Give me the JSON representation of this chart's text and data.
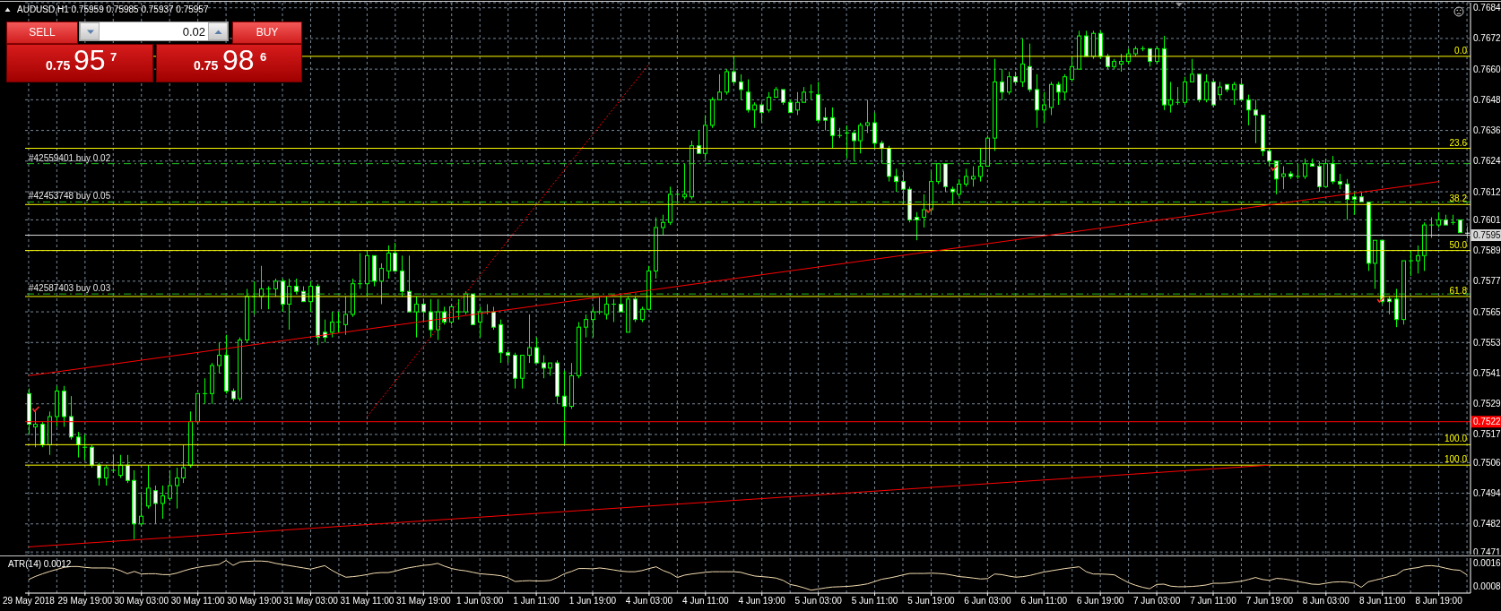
{
  "chart_data": [
    {
      "type": "candlestick",
      "title": "AUDUSD,H1 0.75959 0.75985 0.75937 0.75957",
      "annotations": [
        "SELL",
        "0.02",
        "BUY",
        "0.75",
        "95",
        "7",
        "0.75",
        "98",
        "6",
        {
          "text": "0.0",
          "y": 0.7665
        },
        {
          "text": "23.6",
          "y": 0.7629
        },
        {
          "text": "38.2",
          "y": 0.7607
        },
        {
          "text": "50.0",
          "y": 0.7589
        },
        {
          "text": "61.8",
          "y": 0.7571
        },
        {
          "text": "100.0",
          "y": 0.7513
        },
        {
          "text": "100.0",
          "y": 0.7505
        }
      ],
      "categories": [
        "29 May 2018",
        null,
        null,
        null,
        null,
        null,
        null,
        null,
        "29 May 19:00",
        null,
        null,
        null,
        null,
        null,
        null,
        null,
        "30 May 03:00",
        null,
        null,
        null,
        null,
        null,
        null,
        null,
        "30 May 11:00",
        null,
        null,
        null,
        null,
        null,
        null,
        null,
        "30 May 19:00",
        null,
        null,
        null,
        null,
        null,
        null,
        null,
        "31 May 03:00",
        null,
        null,
        null,
        null,
        null,
        null,
        null,
        "31 May 11:00",
        null,
        null,
        null,
        null,
        null,
        null,
        null,
        "31 May 19:00",
        null,
        null,
        null,
        null,
        null,
        null,
        null,
        "1 Jun 03:00",
        null,
        null,
        null,
        null,
        null,
        null,
        null,
        "1 Jun 11:00",
        null,
        null,
        null,
        null,
        null,
        null,
        null,
        "1 Jun 19:00",
        null,
        null,
        null,
        null,
        null,
        null,
        null,
        "4 Jun 03:00",
        null,
        null,
        null,
        null,
        null,
        null,
        null,
        "4 Jun 11:00",
        null,
        null,
        null,
        null,
        null,
        null,
        null,
        "4 Jun 19:00",
        null,
        null,
        null,
        null,
        null,
        null,
        null,
        "5 Jun 03:00",
        null,
        null,
        null,
        null,
        null,
        null,
        null,
        "5 Jun 11:00",
        null,
        null,
        null,
        null,
        null,
        null,
        null,
        "5 Jun 19:00",
        null,
        null,
        null,
        null,
        null,
        null,
        null,
        "6 Jun 03:00",
        null,
        null,
        null,
        null,
        null,
        null,
        null,
        "6 Jun 11:00",
        null,
        null,
        null,
        null,
        null,
        null,
        null,
        "6 Jun 19:00",
        null,
        null,
        null,
        null,
        null,
        null,
        null,
        "7 Jun 03:00",
        null,
        null,
        null,
        null,
        null,
        null,
        null,
        "7 Jun 11:00",
        null,
        null,
        null,
        null,
        null,
        null,
        null,
        "7 Jun 19:00",
        null,
        null,
        null,
        null,
        null,
        null,
        null,
        "8 Jun 03:00",
        null,
        null,
        null,
        null,
        null,
        null,
        null,
        "8 Jun 11:00",
        null,
        null,
        null,
        null,
        null,
        null,
        null,
        "8 Jun 19:00",
        null,
        null,
        null,
        null
      ],
      "ohlc": [
        [
          0.7533,
          0.7535,
          0.7517,
          0.7521
        ],
        [
          0.752,
          0.7526,
          0.7512,
          0.7521
        ],
        [
          0.7521,
          0.7522,
          0.7512,
          0.7513
        ],
        [
          0.7513,
          0.7526,
          0.7509,
          0.7524
        ],
        [
          0.7524,
          0.7536,
          0.752,
          0.7534
        ],
        [
          0.7534,
          0.7536,
          0.752,
          0.7524
        ],
        [
          0.7524,
          0.7532,
          0.7515,
          0.7516
        ],
        [
          0.7516,
          0.7518,
          0.7508,
          0.7513
        ],
        [
          0.7512,
          0.7517,
          0.7507,
          0.7512
        ],
        [
          0.7512,
          0.7513,
          0.7504,
          0.7505
        ],
        [
          0.7505,
          0.7506,
          0.7497,
          0.75
        ],
        [
          0.75,
          0.7505,
          0.7497,
          0.7504
        ],
        [
          0.7503,
          0.7509,
          0.7502,
          0.7503
        ],
        [
          0.7501,
          0.7509,
          0.75,
          0.7505
        ],
        [
          0.7505,
          0.7509,
          0.7498,
          0.7499
        ],
        [
          0.7499,
          0.7503,
          0.7476,
          0.7482
        ],
        [
          0.7482,
          0.7494,
          0.7481,
          0.7485
        ],
        [
          0.7489,
          0.7505,
          0.7488,
          0.7496
        ],
        [
          0.7495,
          0.7497,
          0.7482,
          0.749
        ],
        [
          0.749,
          0.7497,
          0.7484,
          0.7493
        ],
        [
          0.7492,
          0.7503,
          0.7491,
          0.7497
        ],
        [
          0.7497,
          0.7504,
          0.7488,
          0.75
        ],
        [
          0.75,
          0.7513,
          0.7498,
          0.7504
        ],
        [
          0.7505,
          0.7526,
          0.7504,
          0.7522
        ],
        [
          0.7522,
          0.7533,
          0.7521,
          0.7533
        ],
        [
          0.7533,
          0.7539,
          0.7529,
          0.7533
        ],
        [
          0.7533,
          0.7545,
          0.7529,
          0.7544
        ],
        [
          0.7544,
          0.7553,
          0.7541,
          0.7548
        ],
        [
          0.7548,
          0.7556,
          0.7533,
          0.7534
        ],
        [
          0.7534,
          0.7535,
          0.753,
          0.7531
        ],
        [
          0.7531,
          0.7555,
          0.753,
          0.7554
        ],
        [
          0.7554,
          0.7574,
          0.7553,
          0.7571
        ],
        [
          0.7571,
          0.7577,
          0.7564,
          0.7571
        ],
        [
          0.7571,
          0.7583,
          0.7566,
          0.7574
        ],
        [
          0.7574,
          0.7575,
          0.7566,
          0.7574
        ],
        [
          0.7574,
          0.7578,
          0.7571,
          0.7577
        ],
        [
          0.7577,
          0.7578,
          0.7565,
          0.7568
        ],
        [
          0.7568,
          0.7578,
          0.7558,
          0.7575
        ],
        [
          0.7575,
          0.7578,
          0.7572,
          0.7573
        ],
        [
          0.7573,
          0.7575,
          0.7569,
          0.7569
        ],
        [
          0.7569,
          0.7577,
          0.7565,
          0.7575
        ],
        [
          0.7575,
          0.7576,
          0.7552,
          0.7555
        ],
        [
          0.7557,
          0.7562,
          0.7553,
          0.7555
        ],
        [
          0.7557,
          0.7565,
          0.7555,
          0.7561
        ],
        [
          0.7561,
          0.7565,
          0.7557,
          0.7561
        ],
        [
          0.756,
          0.7571,
          0.7556,
          0.7564
        ],
        [
          0.7564,
          0.7578,
          0.7563,
          0.7576
        ],
        [
          0.7576,
          0.7588,
          0.7574,
          0.7576
        ],
        [
          0.7576,
          0.7589,
          0.7571,
          0.7587
        ],
        [
          0.7587,
          0.7587,
          0.7575,
          0.7577
        ],
        [
          0.7577,
          0.7584,
          0.7568,
          0.7582
        ],
        [
          0.7581,
          0.7591,
          0.7578,
          0.7588
        ],
        [
          0.7588,
          0.7592,
          0.7581,
          0.7581
        ],
        [
          0.7581,
          0.7587,
          0.7571,
          0.7573
        ],
        [
          0.7573,
          0.7587,
          0.7565,
          0.7565
        ],
        [
          0.7565,
          0.7571,
          0.7555,
          0.7568
        ],
        [
          0.7568,
          0.757,
          0.7561,
          0.7565
        ],
        [
          0.7565,
          0.757,
          0.7555,
          0.7558
        ],
        [
          0.7558,
          0.757,
          0.7554,
          0.7565
        ],
        [
          0.7565,
          0.7567,
          0.756,
          0.7561
        ],
        [
          0.7561,
          0.7568,
          0.756,
          0.7567
        ],
        [
          0.7565,
          0.757,
          0.7562,
          0.7565
        ],
        [
          0.7565,
          0.7573,
          0.7564,
          0.7572
        ],
        [
          0.7572,
          0.7572,
          0.756,
          0.756
        ],
        [
          0.7561,
          0.7567,
          0.7555,
          0.7565
        ],
        [
          0.7565,
          0.7568,
          0.7564,
          0.7565
        ],
        [
          0.7565,
          0.7567,
          0.7558,
          0.7559
        ],
        [
          0.756,
          0.7562,
          0.7545,
          0.7549
        ],
        [
          0.7549,
          0.755,
          0.7545,
          0.7548
        ],
        [
          0.7548,
          0.7549,
          0.7535,
          0.7539
        ],
        [
          0.7539,
          0.7548,
          0.7535,
          0.7548
        ],
        [
          0.7548,
          0.7564,
          0.7545,
          0.7551
        ],
        [
          0.7551,
          0.7555,
          0.7545,
          0.7545
        ],
        [
          0.7545,
          0.7548,
          0.7539,
          0.7543
        ],
        [
          0.7543,
          0.7545,
          0.754,
          0.7545
        ],
        [
          0.7545,
          0.7546,
          0.7529,
          0.7532
        ],
        [
          0.7532,
          0.7542,
          0.7513,
          0.7528
        ],
        [
          0.7528,
          0.7545,
          0.7527,
          0.754
        ],
        [
          0.754,
          0.7561,
          0.7539,
          0.7559
        ],
        [
          0.7559,
          0.7564,
          0.7555,
          0.7562
        ],
        [
          0.7562,
          0.7567,
          0.7555,
          0.7565
        ],
        [
          0.7565,
          0.7571,
          0.7564,
          0.7565
        ],
        [
          0.7564,
          0.7571,
          0.7562,
          0.7568
        ],
        [
          0.7568,
          0.757,
          0.7561,
          0.7568
        ],
        [
          0.7568,
          0.7571,
          0.7565,
          0.7565
        ],
        [
          0.7557,
          0.7571,
          0.7557,
          0.757
        ],
        [
          0.757,
          0.7571,
          0.7561,
          0.7562
        ],
        [
          0.7562,
          0.7567,
          0.7561,
          0.7566
        ],
        [
          0.7566,
          0.7583,
          0.7566,
          0.7581
        ],
        [
          0.7581,
          0.7602,
          0.7578,
          0.7598
        ],
        [
          0.7598,
          0.7603,
          0.7595,
          0.76
        ],
        [
          0.76,
          0.7614,
          0.7599,
          0.7611
        ],
        [
          0.7611,
          0.7613,
          0.7608,
          0.7611
        ],
        [
          0.761,
          0.7623,
          0.7609,
          0.7611
        ],
        [
          0.761,
          0.7632,
          0.7609,
          0.763
        ],
        [
          0.763,
          0.7636,
          0.7627,
          0.7627
        ],
        [
          0.7627,
          0.7642,
          0.7625,
          0.7638
        ],
        [
          0.7638,
          0.7649,
          0.7637,
          0.7648
        ],
        [
          0.7648,
          0.7658,
          0.7648,
          0.7651
        ],
        [
          0.7651,
          0.766,
          0.765,
          0.7659
        ],
        [
          0.7659,
          0.7665,
          0.7654,
          0.7655
        ],
        [
          0.7655,
          0.7658,
          0.7648,
          0.7652
        ],
        [
          0.7651,
          0.7656,
          0.7643,
          0.7644
        ],
        [
          0.7644,
          0.7647,
          0.7637,
          0.7646
        ],
        [
          0.7646,
          0.7647,
          0.7639,
          0.7643
        ],
        [
          0.7644,
          0.7651,
          0.7643,
          0.7649
        ],
        [
          0.7649,
          0.7653,
          0.7649,
          0.7652
        ],
        [
          0.7652,
          0.7652,
          0.7646,
          0.7647
        ],
        [
          0.7647,
          0.7648,
          0.7643,
          0.7643
        ],
        [
          0.7644,
          0.7651,
          0.7642,
          0.7647
        ],
        [
          0.7647,
          0.7653,
          0.7647,
          0.7651
        ],
        [
          0.7651,
          0.7654,
          0.7648,
          0.7651
        ],
        [
          0.765,
          0.7655,
          0.7639,
          0.764
        ],
        [
          0.7641,
          0.7645,
          0.7636,
          0.764
        ],
        [
          0.7641,
          0.7645,
          0.7629,
          0.7634
        ],
        [
          0.7634,
          0.7637,
          0.7633,
          0.7634
        ],
        [
          0.7635,
          0.7638,
          0.7625,
          0.7635
        ],
        [
          0.7635,
          0.7636,
          0.7624,
          0.7632
        ],
        [
          0.7632,
          0.7639,
          0.7627,
          0.7638
        ],
        [
          0.7638,
          0.7648,
          0.7635,
          0.7639
        ],
        [
          0.7639,
          0.7643,
          0.7629,
          0.7631
        ],
        [
          0.7631,
          0.7632,
          0.7623,
          0.7629
        ],
        [
          0.7629,
          0.763,
          0.7616,
          0.7618
        ],
        [
          0.7618,
          0.7621,
          0.7612,
          0.7616
        ],
        [
          0.7616,
          0.762,
          0.7607,
          0.7613
        ],
        [
          0.7613,
          0.7614,
          0.76,
          0.7601
        ],
        [
          0.7602,
          0.7604,
          0.7593,
          0.7601
        ],
        [
          0.7602,
          0.7611,
          0.7598,
          0.7605
        ],
        [
          0.7605,
          0.762,
          0.7604,
          0.7616
        ],
        [
          0.7616,
          0.7623,
          0.7615,
          0.7623
        ],
        [
          0.7623,
          0.7623,
          0.7612,
          0.7614
        ],
        [
          0.7613,
          0.7614,
          0.7607,
          0.7612
        ],
        [
          0.7611,
          0.7617,
          0.761,
          0.7615
        ],
        [
          0.7615,
          0.7621,
          0.7614,
          0.7618
        ],
        [
          0.7617,
          0.7622,
          0.7614,
          0.7618
        ],
        [
          0.7618,
          0.7629,
          0.7616,
          0.7622
        ],
        [
          0.7622,
          0.7634,
          0.7622,
          0.7633
        ],
        [
          0.7633,
          0.7664,
          0.7628,
          0.7655
        ],
        [
          0.7655,
          0.766,
          0.7648,
          0.7651
        ],
        [
          0.7651,
          0.7659,
          0.765,
          0.7657
        ],
        [
          0.7657,
          0.7659,
          0.7654,
          0.7655
        ],
        [
          0.7655,
          0.7672,
          0.7653,
          0.7662
        ],
        [
          0.7661,
          0.767,
          0.7651,
          0.7652
        ],
        [
          0.7652,
          0.7658,
          0.7637,
          0.7644
        ],
        [
          0.7644,
          0.7651,
          0.7639,
          0.7646
        ],
        [
          0.7645,
          0.7655,
          0.7642,
          0.7654
        ],
        [
          0.7654,
          0.7655,
          0.7646,
          0.7651
        ],
        [
          0.7651,
          0.7658,
          0.7648,
          0.7657
        ],
        [
          0.7656,
          0.7665,
          0.7655,
          0.7661
        ],
        [
          0.766,
          0.7675,
          0.766,
          0.7673
        ],
        [
          0.7673,
          0.7675,
          0.7665,
          0.7665
        ],
        [
          0.7665,
          0.7675,
          0.7664,
          0.7674
        ],
        [
          0.7674,
          0.7675,
          0.7664,
          0.7665
        ],
        [
          0.7665,
          0.7666,
          0.766,
          0.7661
        ],
        [
          0.7661,
          0.7664,
          0.766,
          0.7663
        ],
        [
          0.7662,
          0.7666,
          0.7659,
          0.7663
        ],
        [
          0.7663,
          0.7668,
          0.7662,
          0.7666
        ],
        [
          0.7666,
          0.7669,
          0.7665,
          0.7668
        ],
        [
          0.7668,
          0.7669,
          0.7667,
          0.7668
        ],
        [
          0.7668,
          0.7668,
          0.7661,
          0.7663
        ],
        [
          0.7663,
          0.7669,
          0.7662,
          0.7668
        ],
        [
          0.7668,
          0.7673,
          0.7644,
          0.7646
        ],
        [
          0.7646,
          0.7655,
          0.7643,
          0.7648
        ],
        [
          0.7647,
          0.7653,
          0.7646,
          0.7647
        ],
        [
          0.7647,
          0.7657,
          0.7646,
          0.7655
        ],
        [
          0.7655,
          0.7664,
          0.7655,
          0.7658
        ],
        [
          0.7658,
          0.7658,
          0.7647,
          0.7648
        ],
        [
          0.7648,
          0.7658,
          0.7647,
          0.7655
        ],
        [
          0.7655,
          0.7656,
          0.7645,
          0.7646
        ],
        [
          0.765,
          0.7655,
          0.7648,
          0.7653
        ],
        [
          0.7654,
          0.7654,
          0.7651,
          0.7652
        ],
        [
          0.7652,
          0.7655,
          0.7646,
          0.7654
        ],
        [
          0.7654,
          0.7656,
          0.7648,
          0.7648
        ],
        [
          0.7648,
          0.765,
          0.7638,
          0.7644
        ],
        [
          0.7644,
          0.7648,
          0.7631,
          0.7642
        ],
        [
          0.7642,
          0.7642,
          0.7626,
          0.7628
        ],
        [
          0.7628,
          0.7629,
          0.7622,
          0.7624
        ],
        [
          0.7624,
          0.7624,
          0.7611,
          0.7617
        ],
        [
          0.7618,
          0.7622,
          0.7613,
          0.7619
        ],
        [
          0.7619,
          0.762,
          0.7617,
          0.7618
        ],
        [
          0.7618,
          0.7623,
          0.7617,
          0.7618
        ],
        [
          0.7618,
          0.7625,
          0.7617,
          0.7623
        ],
        [
          0.7623,
          0.7625,
          0.7622,
          0.7622
        ],
        [
          0.7622,
          0.7624,
          0.7612,
          0.7614
        ],
        [
          0.7614,
          0.7625,
          0.7614,
          0.7623
        ],
        [
          0.7623,
          0.7626,
          0.7615,
          0.7616
        ],
        [
          0.7616,
          0.7619,
          0.7613,
          0.7615
        ],
        [
          0.7615,
          0.7617,
          0.7601,
          0.7609
        ],
        [
          0.761,
          0.7612,
          0.7603,
          0.7609
        ],
        [
          0.761,
          0.7612,
          0.7608,
          0.7608
        ],
        [
          0.7608,
          0.7608,
          0.7581,
          0.7584
        ],
        [
          0.7584,
          0.7593,
          0.7574,
          0.7593
        ],
        [
          0.7593,
          0.7593,
          0.7568,
          0.7569
        ],
        [
          0.757,
          0.7571,
          0.7564,
          0.7569
        ],
        [
          0.757,
          0.7574,
          0.7559,
          0.7562
        ],
        [
          0.7562,
          0.7585,
          0.756,
          0.7585
        ],
        [
          0.7585,
          0.7589,
          0.7579,
          0.7585
        ],
        [
          0.7585,
          0.7591,
          0.758,
          0.7587
        ],
        [
          0.7587,
          0.76,
          0.7581,
          0.7599
        ],
        [
          0.7599,
          0.7602,
          0.7594,
          0.7599
        ],
        [
          0.7599,
          0.7604,
          0.7598,
          0.7601
        ],
        [
          0.7601,
          0.7603,
          0.7599,
          0.7599
        ],
        [
          0.76,
          0.7603,
          0.7599,
          0.76
        ],
        [
          0.7601,
          0.7601,
          0.7596,
          0.7596
        ],
        [
          0.75959,
          0.75985,
          0.75937,
          0.75957
        ]
      ],
      "color": "#00ff00",
      "colors": [
        "#ffffff",
        "#000000",
        "#ffffff",
        "#000000",
        "#000000",
        "#ffffff",
        "#ffffff",
        "#ffffff",
        "#00ff00",
        "#ffffff",
        "#ffffff",
        "#000000",
        "#00ff00",
        "#000000",
        "#ffffff",
        "#ffffff",
        "#000000",
        "#000000",
        "#ffffff",
        "#000000",
        "#000000",
        "#000000",
        "#000000",
        "#000000",
        "#000000",
        "#00ff00",
        "#000000",
        "#000000",
        "#ffffff",
        "#ffffff",
        "#000000",
        "#000000",
        "#00ff00",
        "#000000",
        "#00ff00",
        "#000000",
        "#ffffff",
        "#000000",
        "#ffffff",
        "#ffffff",
        "#000000",
        "#ffffff",
        "#ffffff",
        "#000000",
        "#00ff00",
        "#000000",
        "#000000",
        "#00ff00",
        "#000000",
        "#ffffff",
        "#000000",
        "#000000",
        "#ffffff",
        "#ffffff",
        "#ffffff",
        "#000000",
        "#ffffff",
        "#ffffff",
        "#000000",
        "#ffffff",
        "#000000",
        "#00ff00",
        "#000000",
        "#ffffff",
        "#000000",
        "#00ff00",
        "#ffffff",
        "#ffffff",
        "#ffffff",
        "#ffffff",
        "#000000",
        "#000000",
        "#ffffff",
        "#ffffff",
        "#000000",
        "#ffffff",
        "#ffffff",
        "#000000",
        "#000000",
        "#000000",
        "#000000",
        "#00ff00",
        "#000000",
        "#00ff00",
        "#ffffff",
        "#000000",
        "#ffffff",
        "#000000",
        "#000000",
        "#000000",
        "#000000",
        "#000000",
        "#00ff00",
        "#000000",
        "#000000",
        "#ffffff",
        "#000000",
        "#000000",
        "#000000",
        "#000000",
        "#ffffff",
        "#ffffff",
        "#ffffff",
        "#000000",
        "#ffffff",
        "#000000",
        "#000000",
        "#ffffff",
        "#ffffff",
        "#000000",
        "#000000",
        "#00ff00",
        "#ffffff",
        "#ffffff",
        "#ffffff",
        "#00ff00",
        "#00ff00",
        "#ffffff",
        "#000000",
        "#000000",
        "#ffffff",
        "#ffffff",
        "#ffffff",
        "#ffffff",
        "#ffffff",
        "#ffffff",
        "#ffffff",
        "#000000",
        "#000000",
        "#000000",
        "#ffffff",
        "#ffffff",
        "#000000",
        "#000000",
        "#000000",
        "#000000",
        "#000000",
        "#000000",
        "#ffffff",
        "#000000",
        "#ffffff",
        "#000000",
        "#ffffff",
        "#ffffff",
        "#000000",
        "#000000",
        "#ffffff",
        "#000000",
        "#000000",
        "#000000",
        "#ffffff",
        "#000000",
        "#ffffff",
        "#ffffff",
        "#000000",
        "#000000",
        "#000000",
        "#000000",
        "#00ff00",
        "#ffffff",
        "#000000",
        "#ffffff",
        "#000000",
        "#00ff00",
        "#000000",
        "#000000",
        "#ffffff",
        "#000000",
        "#ffffff",
        "#000000",
        "#ffffff",
        "#000000",
        "#ffffff",
        "#ffffff",
        "#ffffff",
        "#ffffff",
        "#ffffff",
        "#ffffff",
        "#000000",
        "#ffffff",
        "#00ff00",
        "#000000",
        "#ffffff",
        "#ffffff",
        "#000000",
        "#ffffff",
        "#ffffff",
        "#ffffff",
        "#ffffff",
        "#ffffff",
        "#ffffff",
        "#000000",
        "#ffffff",
        "#ffffff",
        "#ffffff",
        "#000000",
        "#00ff00",
        "#000000",
        "#000000",
        "#00ff00",
        "#000000",
        "#ffffff",
        "#00ff00",
        "#ffffff",
        "#ffffff"
      ],
      "series": [
        {
          "type": "line",
          "color": "#ff0000",
          "x": [
            "29 May 2018",
            "8 Jun 19:00"
          ],
          "values": [
            0.754,
            0.7616
          ],
          "line_style": "solid"
        },
        {
          "type": "line",
          "color": "#ff0000",
          "x": [
            "29 May 2018",
            "7 Jun 19:00"
          ],
          "values": [
            0.7473,
            0.7505
          ],
          "line_style": "solid"
        },
        {
          "type": "line",
          "color": "#ff0000",
          "x": [
            "31 May 11:00",
            "4 Jun 03:00"
          ],
          "values": [
            0.7524,
            0.7662
          ],
          "line_style": "dotted"
        }
      ],
      "ylim": [
        0.747,
        0.7686
      ],
      "yticks": [
        0.7471,
        0.7482,
        0.7494,
        0.7506,
        0.7517,
        0.7529,
        0.7541,
        0.7553,
        0.7565,
        0.7577,
        0.7589,
        0.7601,
        0.7612,
        0.7624,
        0.7636,
        0.7648,
        {
          "value": 0.766,
          "label": "0.7660"
        },
        0.7672,
        0.7684
      ],
      "tick_labels": "y",
      "grid": true,
      "marker": "none",
      "ref_lines": [
        {
          "axis": "y",
          "value": 0.7665,
          "color": "#ffff00",
          "line_style": "solid"
        },
        {
          "axis": "y",
          "value": 0.7629,
          "color": "#ffff00",
          "line_style": "solid"
        },
        {
          "axis": "y",
          "value": 0.7607,
          "color": "#ffff00",
          "line_style": "solid"
        },
        {
          "axis": "y",
          "value": 0.7589,
          "color": "#ffff00",
          "line_style": "solid"
        },
        {
          "axis": "y",
          "value": 0.7571,
          "color": "#ffff00",
          "line_style": "solid"
        },
        {
          "axis": "y",
          "value": 0.7513,
          "color": "#ffff00",
          "line_style": "solid"
        },
        {
          "axis": "y",
          "value": 0.7505,
          "color": "#ffff00",
          "line_style": "solid"
        },
        {
          "axis": "y",
          "value": 0.7623,
          "label": "#42559401 buy 0.02",
          "color": "#22c022",
          "line_style": "dashed"
        },
        {
          "axis": "y",
          "value": 0.7608,
          "label": "#42453748 buy 0.05",
          "color": "#22c022",
          "line_style": "dashed"
        },
        {
          "axis": "y",
          "value": 0.7572,
          "label": "#42587403 buy 0.03",
          "color": "#22c022",
          "line_style": "dashed"
        },
        {
          "axis": "y",
          "value": 0.7595,
          "label": "0.7595",
          "color": "#d8d8d8",
          "line_style": "solid"
        },
        {
          "axis": "y",
          "value": 0.7522,
          "label": "0.7522",
          "color": "#ff0000",
          "line_style": "solid"
        }
      ]
    },
    {
      "type": "line",
      "title": "ATR(14) 0.0012",
      "categories": [
        "29 May 2018",
        null,
        null,
        null,
        null,
        null,
        null,
        null,
        "29 May 19:00",
        null,
        null,
        null,
        null,
        null,
        null,
        null,
        "30 May 03:00",
        null,
        null,
        null,
        null,
        null,
        null,
        null,
        "30 May 11:00",
        null,
        null,
        null,
        null,
        null,
        null,
        null,
        "30 May 19:00",
        null,
        null,
        null,
        null,
        null,
        null,
        null,
        "31 May 03:00",
        null,
        null,
        null,
        null,
        null,
        null,
        null,
        "31 May 11:00",
        null,
        null,
        null,
        null,
        null,
        null,
        null,
        "31 May 19:00",
        null,
        null,
        null,
        null,
        null,
        null,
        null,
        "1 Jun 03:00",
        null,
        null,
        null,
        null,
        null,
        null,
        null,
        "1 Jun 11:00",
        null,
        null,
        null,
        null,
        null,
        null,
        null,
        "1 Jun 19:00",
        null,
        null,
        null,
        null,
        null,
        null,
        null,
        "4 Jun 03:00",
        null,
        null,
        null,
        null,
        null,
        null,
        null,
        "4 Jun 11:00",
        null,
        null,
        null,
        null,
        null,
        null,
        null,
        "4 Jun 19:00",
        null,
        null,
        null,
        null,
        null,
        null,
        null,
        "5 Jun 03:00",
        null,
        null,
        null,
        null,
        null,
        null,
        null,
        "5 Jun 11:00",
        null,
        null,
        null,
        null,
        null,
        null,
        null,
        "5 Jun 19:00",
        null,
        null,
        null,
        null,
        null,
        null,
        null,
        "6 Jun 03:00",
        null,
        null,
        null,
        null,
        null,
        null,
        null,
        "6 Jun 11:00",
        null,
        null,
        null,
        null,
        null,
        null,
        null,
        "6 Jun 19:00",
        null,
        null,
        null,
        null,
        null,
        null,
        null,
        "7 Jun 03:00",
        null,
        null,
        null,
        null,
        null,
        null,
        null,
        "7 Jun 11:00",
        null,
        null,
        null,
        null,
        null,
        null,
        null,
        "7 Jun 19:00",
        null,
        null,
        null,
        null,
        null,
        null,
        null,
        "8 Jun 03:00",
        null,
        null,
        null,
        null,
        null,
        null,
        null,
        "8 Jun 11:00",
        null,
        null,
        null,
        null,
        null,
        null,
        null,
        "8 Jun 19:00",
        null,
        null,
        null,
        null
      ],
      "values": [
        0.00104,
        0.00115,
        0.00124,
        0.00132,
        0.00139,
        0.00146,
        0.00149,
        0.00149,
        0.00146,
        0.00144,
        0.00144,
        0.00144,
        0.00143,
        0.00135,
        0.00124,
        0.00132,
        0.00123,
        0.00124,
        0.00124,
        0.00121,
        0.00121,
        0.00126,
        0.00134,
        0.00141,
        0.00146,
        0.0015,
        0.00153,
        0.00156,
        0.0017,
        0.00153,
        0.00165,
        0.00167,
        0.00168,
        0.00168,
        0.00166,
        0.0016,
        0.00156,
        0.00152,
        0.00148,
        0.00144,
        0.0014,
        0.00146,
        0.00152,
        0.00136,
        0.00123,
        0.00112,
        0.00114,
        0.00117,
        0.00121,
        0.00126,
        0.00128,
        0.00128,
        0.00133,
        0.0014,
        0.00145,
        0.00149,
        0.00153,
        0.00155,
        0.0016,
        0.0015,
        0.00142,
        0.00137,
        0.00134,
        0.00129,
        0.00124,
        0.00122,
        0.0012,
        0.00117,
        0.0011,
        0.00097,
        0.00099,
        0.001,
        0.00099,
        0.00099,
        0.00101,
        0.00111,
        0.00124,
        0.00132,
        0.00142,
        0.00142,
        0.00141,
        0.00144,
        0.00141,
        0.00137,
        0.00133,
        0.00131,
        0.00131,
        0.00135,
        0.00142,
        0.00148,
        0.00135,
        0.00126,
        0.00111,
        0.00119,
        0.00123,
        0.00126,
        0.00129,
        0.00131,
        0.00131,
        0.00131,
        0.00131,
        0.00129,
        0.00122,
        0.00116,
        0.00114,
        0.00112,
        0.00109,
        0.00101,
        0.00087,
        0.00082,
        0.00075,
        0.00067,
        0.00071,
        0.00075,
        0.00078,
        0.00079,
        0.0008,
        0.00082,
        0.00085,
        0.00089,
        0.00097,
        0.00105,
        0.00109,
        0.00114,
        0.0012,
        0.00125,
        0.00125,
        0.00125,
        0.00126,
        0.00125,
        0.00123,
        0.00119,
        0.00114,
        0.00112,
        0.00109,
        0.00106,
        0.00107,
        0.00123,
        0.00121,
        0.00116,
        0.00112,
        0.00114,
        0.00118,
        0.00124,
        0.0013,
        0.00134,
        0.00138,
        0.00142,
        0.00145,
        0.00148,
        0.00131,
        0.00123,
        0.00123,
        0.00122,
        0.0012,
        0.00106,
        0.00093,
        0.00084,
        0.00077,
        0.00072,
        0.00087,
        0.00088,
        0.00081,
        0.00079,
        0.00079,
        0.0008,
        0.00082,
        0.00085,
        0.00091,
        0.00091,
        0.00092,
        0.00095,
        0.00098,
        0.00104,
        0.00111,
        0.00104,
        0.00101,
        0.00108,
        0.00106,
        0.00102,
        0.00097,
        0.00093,
        0.00088,
        0.00087,
        0.00091,
        0.00095,
        0.00096,
        0.00095,
        0.00091,
        0.00077,
        0.00096,
        0.00102,
        0.00108,
        0.00115,
        0.0012,
        0.00137,
        0.00142,
        0.00145,
        0.00151,
        0.00152,
        0.00149,
        0.00143,
        0.00138,
        0.00136,
        0.0012
      ],
      "color": "#f5deb3",
      "ylim": [
        0.00057,
        0.00178
      ],
      "yticks": [
        0.0008,
        0.0016
      ],
      "grid": "x",
      "marker": "none"
    }
  ]
}
